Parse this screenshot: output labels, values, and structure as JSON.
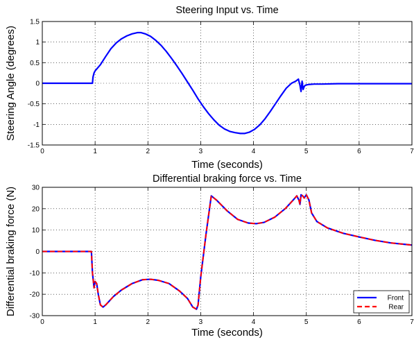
{
  "chart_data": [
    {
      "type": "line",
      "title": "Steering Input vs. Time",
      "xlabel": "Time (seconds)",
      "ylabel": "Steering Angle (degrees)",
      "xlim": [
        0,
        7
      ],
      "ylim": [
        -1.5,
        1.5
      ],
      "xticks": [
        "0",
        "1",
        "2",
        "3",
        "4",
        "5",
        "6",
        "7"
      ],
      "yticks": [
        "1.5",
        "1",
        "0.5",
        "0",
        "-0.5",
        "-1",
        "-1.5"
      ],
      "grid": true,
      "legend": null,
      "series": [
        {
          "color": "#0000ff",
          "dash": "solid",
          "x": [
            0,
            0.95,
            0.96,
            0.98,
            1.0,
            1.1,
            1.2,
            1.3,
            1.4,
            1.5,
            1.6,
            1.7,
            1.8,
            1.87,
            1.95,
            2.05,
            2.15,
            2.25,
            2.35,
            2.45,
            2.55,
            2.65,
            2.75,
            2.85,
            2.95,
            3.05,
            3.15,
            3.25,
            3.35,
            3.45,
            3.55,
            3.65,
            3.75,
            3.83,
            3.92,
            4.02,
            4.12,
            4.22,
            4.32,
            4.42,
            4.52,
            4.62,
            4.72,
            4.8,
            4.85,
            4.88,
            4.9,
            4.92,
            4.94,
            4.96,
            4.98,
            5.0,
            5.05,
            5.15,
            5.3,
            5.6,
            6.0,
            6.5,
            7.0
          ],
          "y": [
            0,
            0,
            0.15,
            0.25,
            0.3,
            0.45,
            0.65,
            0.84,
            0.98,
            1.08,
            1.15,
            1.2,
            1.23,
            1.23,
            1.2,
            1.14,
            1.04,
            0.92,
            0.77,
            0.6,
            0.42,
            0.23,
            0.03,
            -0.17,
            -0.38,
            -0.57,
            -0.74,
            -0.89,
            -1.02,
            -1.11,
            -1.17,
            -1.2,
            -1.22,
            -1.22,
            -1.19,
            -1.12,
            -1.01,
            -0.86,
            -0.68,
            -0.49,
            -0.3,
            -0.12,
            0.0,
            0.05,
            0.1,
            -0.05,
            -0.2,
            0.05,
            -0.15,
            -0.08,
            -0.05,
            -0.04,
            -0.03,
            -0.02,
            -0.02,
            -0.01,
            -0.01,
            -0.01,
            -0.01
          ]
        }
      ]
    },
    {
      "type": "line",
      "title": "Differential braking force vs. Time",
      "xlabel": "Time (seconds)",
      "ylabel": "Differential braking force (N)",
      "xlim": [
        0,
        7
      ],
      "ylim": [
        -30,
        30
      ],
      "xticks": [
        "0",
        "1",
        "2",
        "3",
        "4",
        "5",
        "6",
        "7"
      ],
      "yticks": [
        "30",
        "20",
        "10",
        "0",
        "-10",
        "-20",
        "-30"
      ],
      "grid": true,
      "legend": "bottom-right",
      "series": [
        {
          "name": "Front",
          "color": "#0000ff",
          "dash": "solid",
          "x": [
            0,
            0.93,
            0.95,
            0.98,
            1.0,
            1.03,
            1.06,
            1.1,
            1.15,
            1.2,
            1.35,
            1.5,
            1.7,
            1.9,
            2.05,
            2.2,
            2.4,
            2.6,
            2.75,
            2.85,
            2.92,
            2.95,
            3.0,
            3.1,
            3.2,
            3.3,
            3.5,
            3.7,
            3.9,
            4.05,
            4.2,
            4.4,
            4.6,
            4.75,
            4.82,
            4.86,
            4.88,
            4.9,
            4.93,
            4.96,
            5.0,
            5.05,
            5.1,
            5.2,
            5.4,
            5.7,
            6.0,
            6.3,
            6.6,
            7.0
          ],
          "y": [
            0,
            0,
            -10,
            -17,
            -14,
            -15,
            -20,
            -25,
            -26,
            -25,
            -21,
            -18,
            -15,
            -13.2,
            -13,
            -13.5,
            -15,
            -18.5,
            -22,
            -26,
            -27,
            -25,
            -12,
            8,
            26,
            24,
            19,
            15,
            13.3,
            13,
            13.6,
            16,
            20,
            24,
            26,
            24,
            22,
            26.5,
            26,
            25,
            26.5,
            24,
            18,
            14,
            11,
            8.5,
            6.8,
            5.2,
            4.0,
            3.0
          ]
        },
        {
          "name": "Rear",
          "color": "#ff0000",
          "dash": "dashed",
          "x": [
            0,
            0.93,
            0.95,
            0.98,
            1.0,
            1.03,
            1.06,
            1.1,
            1.15,
            1.2,
            1.35,
            1.5,
            1.7,
            1.9,
            2.05,
            2.2,
            2.4,
            2.6,
            2.75,
            2.85,
            2.92,
            2.95,
            3.0,
            3.1,
            3.2,
            3.3,
            3.5,
            3.7,
            3.9,
            4.05,
            4.2,
            4.4,
            4.6,
            4.75,
            4.82,
            4.86,
            4.88,
            4.9,
            4.93,
            4.96,
            5.0,
            5.05,
            5.1,
            5.2,
            5.4,
            5.7,
            6.0,
            6.3,
            6.6,
            7.0
          ],
          "y": [
            0,
            0,
            -10,
            -17,
            -14,
            -15,
            -20,
            -25,
            -26,
            -25,
            -21,
            -18,
            -15,
            -13.2,
            -13,
            -13.5,
            -15,
            -18.5,
            -22,
            -26,
            -27,
            -25,
            -12,
            8,
            26,
            24,
            19,
            15,
            13.3,
            13,
            13.6,
            16,
            20,
            24,
            26,
            24,
            22,
            26.5,
            26,
            25,
            26.5,
            24,
            18,
            14,
            11,
            8.5,
            6.8,
            5.2,
            4.0,
            3.0
          ]
        }
      ]
    }
  ]
}
